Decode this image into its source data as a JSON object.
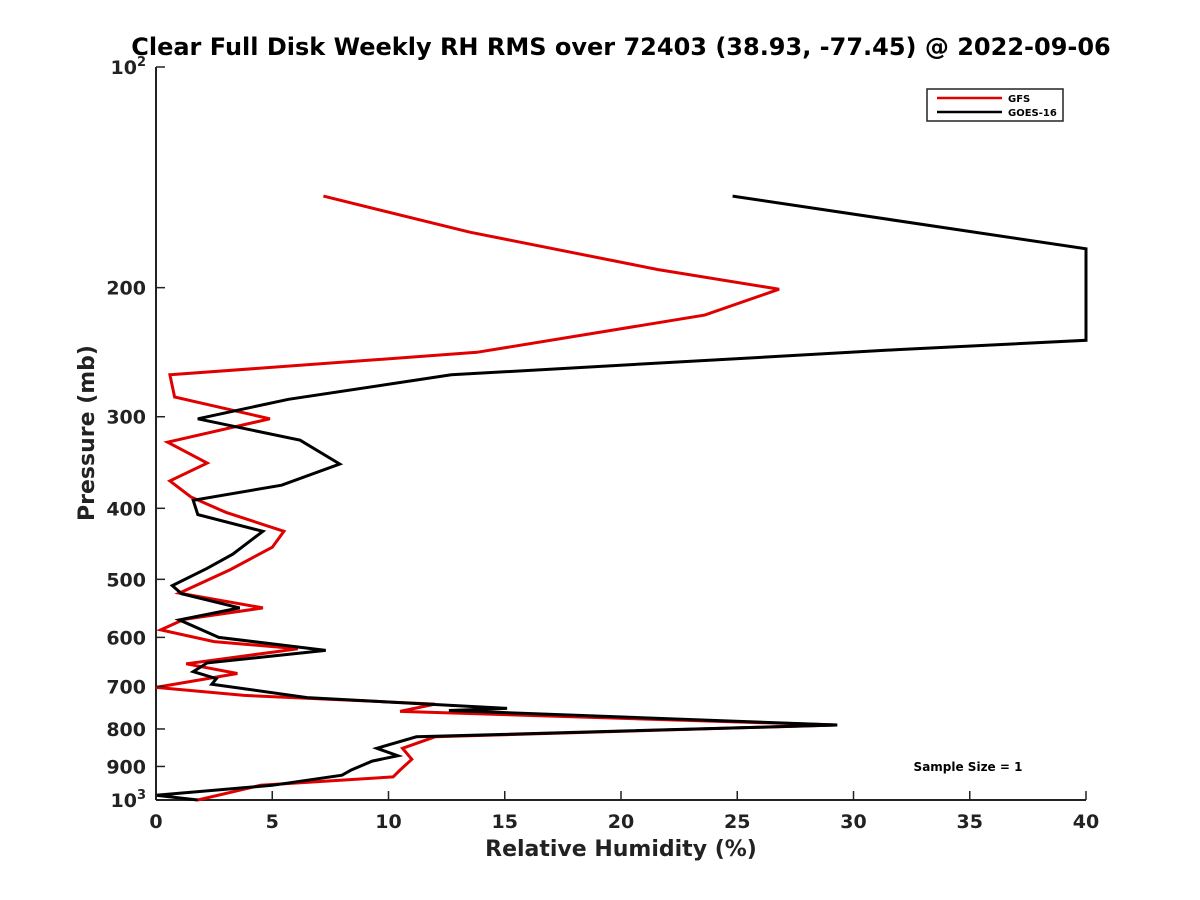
{
  "chart_data": {
    "type": "line",
    "title": "Clear Full Disk Weekly RH RMS over 72403 (38.93, -77.45) @ 2022-09-06",
    "xlabel": "Relative Humidity (%)",
    "ylabel": "Pressure (mb)",
    "xlim": [
      0,
      40
    ],
    "ylim": [
      100,
      1000
    ],
    "y_scale": "log",
    "y_reversed": true,
    "grid": false,
    "legend_position": "top-right",
    "x_ticks": [
      0,
      5,
      10,
      15,
      20,
      25,
      30,
      35,
      40
    ],
    "x_tick_labels": [
      "0",
      "5",
      "10",
      "15",
      "20",
      "25",
      "30",
      "35",
      "40"
    ],
    "y_ticks": [
      200,
      300,
      400,
      500,
      600,
      700,
      800,
      900
    ],
    "y_tick_labels": [
      "200",
      "300",
      "400",
      "500",
      "600",
      "700",
      "800",
      "900"
    ],
    "y_top_label": {
      "base": "10",
      "exp": "2"
    },
    "y_bottom_label": {
      "base": "10",
      "exp": "3"
    },
    "annotation": "Sample Size = 1",
    "series": [
      {
        "name": "GFS",
        "color": "#e00000",
        "points": [
          [
            7.2,
            150
          ],
          [
            13.5,
            168
          ],
          [
            21.6,
            189
          ],
          [
            26.8,
            201
          ],
          [
            23.6,
            218
          ],
          [
            13.8,
            245
          ],
          [
            0.6,
            263
          ],
          [
            0.8,
            282
          ],
          [
            4.9,
            302
          ],
          [
            0.5,
            325
          ],
          [
            2.2,
            347
          ],
          [
            0.6,
            367
          ],
          [
            1.5,
            386
          ],
          [
            3.0,
            405
          ],
          [
            5.5,
            430
          ],
          [
            5.0,
            452
          ],
          [
            3.2,
            485
          ],
          [
            1.0,
            522
          ],
          [
            4.6,
            547
          ],
          [
            1.2,
            567
          ],
          [
            0.2,
            586
          ],
          [
            2.5,
            608
          ],
          [
            6.1,
            622
          ],
          [
            1.3,
            652
          ],
          [
            3.5,
            672
          ],
          [
            0.0,
            702
          ],
          [
            3.8,
            720
          ],
          [
            12.0,
            740
          ],
          [
            10.5,
            757
          ],
          [
            29.3,
            790
          ],
          [
            12.0,
            820
          ],
          [
            10.6,
            850
          ],
          [
            11.0,
            880
          ],
          [
            10.5,
            910
          ],
          [
            10.2,
            930
          ],
          [
            4.5,
            955
          ],
          [
            1.8,
            1000
          ]
        ]
      },
      {
        "name": "GOES-16",
        "color": "#000000",
        "points": [
          [
            24.8,
            150
          ],
          [
            40.0,
            177
          ],
          [
            40.0,
            236
          ],
          [
            31.9,
            243
          ],
          [
            12.7,
            263
          ],
          [
            5.7,
            284
          ],
          [
            1.8,
            302
          ],
          [
            6.2,
            323
          ],
          [
            7.9,
            348
          ],
          [
            5.4,
            372
          ],
          [
            1.6,
            390
          ],
          [
            1.8,
            408
          ],
          [
            4.6,
            430
          ],
          [
            3.3,
            462
          ],
          [
            2.2,
            483
          ],
          [
            0.7,
            510
          ],
          [
            1.1,
            523
          ],
          [
            3.6,
            547
          ],
          [
            1.0,
            568
          ],
          [
            2.7,
            600
          ],
          [
            7.3,
            625
          ],
          [
            2.2,
            650
          ],
          [
            1.6,
            668
          ],
          [
            2.6,
            683
          ],
          [
            2.4,
            695
          ],
          [
            6.5,
            725
          ],
          [
            15.1,
            750
          ],
          [
            12.6,
            755
          ],
          [
            29.3,
            790
          ],
          [
            11.2,
            820
          ],
          [
            9.5,
            850
          ],
          [
            10.4,
            870
          ],
          [
            9.3,
            885
          ],
          [
            8.4,
            910
          ],
          [
            8.0,
            925
          ],
          [
            5.0,
            955
          ],
          [
            0.0,
            985
          ],
          [
            1.8,
            1000
          ]
        ]
      }
    ]
  }
}
